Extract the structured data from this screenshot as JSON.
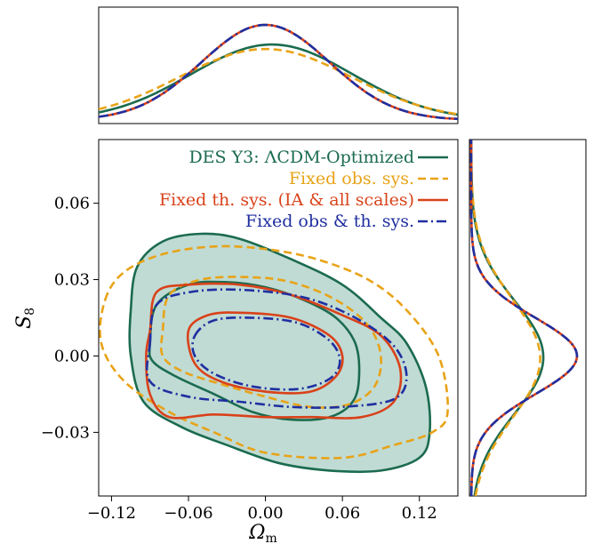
{
  "chart_data": {
    "type": "contour",
    "xlabel": "Ω",
    "xlabel_sub": "m",
    "ylabel": "S",
    "ylabel_sub": "8",
    "xlim": [
      -0.13,
      0.15
    ],
    "ylim": [
      -0.055,
      0.085
    ],
    "xticks": [
      -0.12,
      -0.06,
      0.0,
      0.06,
      0.12
    ],
    "xtick_labels": [
      "−0.12",
      "−0.06",
      "0.00",
      "0.06",
      "0.12"
    ],
    "yticks": [
      -0.03,
      0.0,
      0.03,
      0.06
    ],
    "ytick_labels": [
      "−0.03",
      "0.00",
      "0.03",
      "0.06"
    ],
    "legend_position": "top-right",
    "series": [
      {
        "name": "DES Y3: ΛCDM-Optimized",
        "color": "#1b6b4f",
        "style": "solid",
        "filled": true,
        "fill_color": "#b5d5cc",
        "center": [
          0.005,
          -0.0005
        ],
        "sigma_x": 0.063,
        "sigma_y": 0.022,
        "contour68": [
          [
            -0.09,
            0.005
          ],
          [
            -0.085,
            0.02
          ],
          [
            -0.06,
            0.028
          ],
          [
            -0.03,
            0.029
          ],
          [
            0.0,
            0.027
          ],
          [
            0.03,
            0.022
          ],
          [
            0.055,
            0.015
          ],
          [
            0.07,
            0.005
          ],
          [
            0.073,
            -0.008
          ],
          [
            0.068,
            -0.018
          ],
          [
            0.05,
            -0.024
          ],
          [
            0.02,
            -0.025
          ],
          [
            -0.01,
            -0.022
          ],
          [
            -0.04,
            -0.015
          ],
          [
            -0.07,
            -0.008
          ],
          [
            -0.088,
            -0.002
          ]
        ],
        "contour95": [
          [
            -0.105,
            0.018
          ],
          [
            -0.1,
            0.035
          ],
          [
            -0.08,
            0.045
          ],
          [
            -0.05,
            0.048
          ],
          [
            -0.02,
            0.046
          ],
          [
            0.02,
            0.038
          ],
          [
            0.06,
            0.028
          ],
          [
            0.09,
            0.015
          ],
          [
            0.11,
            0.005
          ],
          [
            0.125,
            -0.012
          ],
          [
            0.128,
            -0.03
          ],
          [
            0.12,
            -0.04
          ],
          [
            0.09,
            -0.045
          ],
          [
            0.05,
            -0.045
          ],
          [
            0.01,
            -0.042
          ],
          [
            -0.03,
            -0.035
          ],
          [
            -0.065,
            -0.028
          ],
          [
            -0.095,
            -0.018
          ],
          [
            -0.105,
            0.0
          ]
        ]
      },
      {
        "name": "Fixed obs. sys.",
        "color": "#e8a317",
        "style": "dashed",
        "filled": false,
        "center": [
          0.0,
          -0.001
        ],
        "sigma_x": 0.067,
        "sigma_y": 0.023,
        "contour68": [
          [
            -0.08,
            0.01
          ],
          [
            -0.075,
            0.024
          ],
          [
            -0.05,
            0.03
          ],
          [
            -0.015,
            0.031
          ],
          [
            0.02,
            0.029
          ],
          [
            0.055,
            0.022
          ],
          [
            0.08,
            0.012
          ],
          [
            0.09,
            0.0
          ],
          [
            0.085,
            -0.012
          ],
          [
            0.065,
            -0.019
          ],
          [
            0.035,
            -0.02
          ],
          [
            0.0,
            -0.016
          ],
          [
            -0.035,
            -0.011
          ],
          [
            -0.065,
            -0.006
          ],
          [
            -0.08,
            0.0
          ]
        ],
        "contour95": [
          [
            -0.125,
            0.022
          ],
          [
            -0.11,
            0.033
          ],
          [
            -0.08,
            0.04
          ],
          [
            -0.04,
            0.043
          ],
          [
            0.0,
            0.042
          ],
          [
            0.04,
            0.038
          ],
          [
            0.08,
            0.03
          ],
          [
            0.11,
            0.018
          ],
          [
            0.135,
            0.0
          ],
          [
            0.142,
            -0.022
          ],
          [
            0.13,
            -0.03
          ],
          [
            0.1,
            -0.035
          ],
          [
            0.06,
            -0.04
          ],
          [
            0.0,
            -0.038
          ],
          [
            -0.04,
            -0.03
          ],
          [
            -0.075,
            -0.022
          ],
          [
            -0.11,
            -0.01
          ],
          [
            -0.128,
            0.005
          ]
        ]
      },
      {
        "name": "Fixed th. sys. (IA & all scales)",
        "color": "#d9421a",
        "style": "solid",
        "filled": false,
        "center": [
          0.0,
          0.0
        ],
        "sigma_x": 0.05,
        "sigma_y": 0.015,
        "contour68": [
          [
            -0.06,
            0.01
          ],
          [
            -0.045,
            0.016
          ],
          [
            -0.02,
            0.017
          ],
          [
            0.02,
            0.015
          ],
          [
            0.05,
            0.008
          ],
          [
            0.06,
            0.0
          ],
          [
            0.055,
            -0.008
          ],
          [
            0.035,
            -0.014
          ],
          [
            0.0,
            -0.014
          ],
          [
            -0.035,
            -0.01
          ],
          [
            -0.055,
            -0.003
          ]
        ],
        "contour95": [
          [
            -0.09,
            0.01
          ],
          [
            -0.085,
            0.025
          ],
          [
            -0.06,
            0.028
          ],
          [
            -0.02,
            0.028
          ],
          [
            0.02,
            0.024
          ],
          [
            0.06,
            0.016
          ],
          [
            0.09,
            0.008
          ],
          [
            0.105,
            -0.005
          ],
          [
            0.1,
            -0.018
          ],
          [
            0.075,
            -0.024
          ],
          [
            0.035,
            -0.024
          ],
          [
            0.0,
            -0.024
          ],
          [
            -0.04,
            -0.023
          ],
          [
            -0.075,
            -0.024
          ],
          [
            -0.09,
            -0.015
          ],
          [
            -0.093,
            0.0
          ]
        ]
      },
      {
        "name": "Fixed obs & th. sys.",
        "color": "#1f2fa0",
        "style": "dashdot",
        "filled": false,
        "center": [
          0.0,
          0.0
        ],
        "sigma_x": 0.05,
        "sigma_y": 0.015,
        "contour68": [
          [
            -0.055,
            0.008
          ],
          [
            -0.04,
            0.014
          ],
          [
            -0.01,
            0.015
          ],
          [
            0.025,
            0.013
          ],
          [
            0.05,
            0.006
          ],
          [
            0.058,
            -0.002
          ],
          [
            0.05,
            -0.009
          ],
          [
            0.025,
            -0.013
          ],
          [
            -0.01,
            -0.012
          ],
          [
            -0.04,
            -0.007
          ],
          [
            -0.055,
            0.0
          ]
        ],
        "contour95": [
          [
            -0.09,
            0.005
          ],
          [
            -0.085,
            0.02
          ],
          [
            -0.06,
            0.025
          ],
          [
            -0.02,
            0.026
          ],
          [
            0.03,
            0.023
          ],
          [
            0.07,
            0.015
          ],
          [
            0.1,
            0.004
          ],
          [
            0.11,
            -0.008
          ],
          [
            0.1,
            -0.017
          ],
          [
            0.06,
            -0.02
          ],
          [
            0.02,
            -0.02
          ],
          [
            -0.02,
            -0.018
          ],
          [
            -0.06,
            -0.016
          ],
          [
            -0.09,
            -0.01
          ]
        ]
      }
    ]
  }
}
